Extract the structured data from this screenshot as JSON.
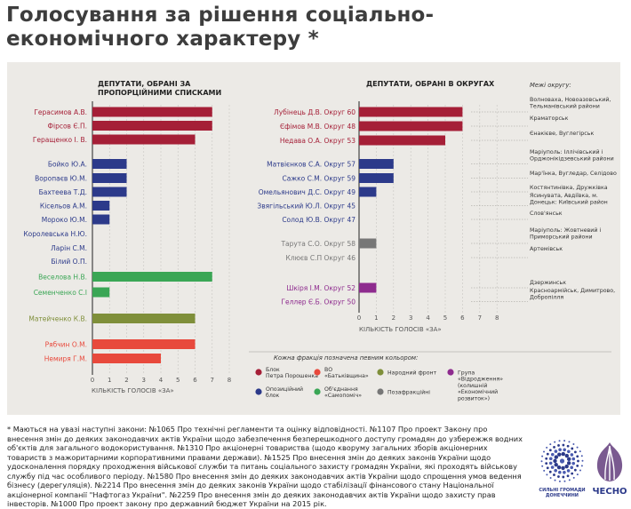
{
  "title": "Голосування за рішення соціально-економічного характеру *",
  "chart_data": [
    {
      "type": "bar",
      "orientation": "horizontal",
      "title": "ДЕПУТАТИ, ОБРАНІ ЗА ПРОПОРЦІЙНИМИ СПИСКАМИ",
      "xlabel": "КІЛЬКІСТЬ ГОЛОСІВ «ЗА»",
      "xlim": [
        0,
        8
      ],
      "xticks": [
        "0",
        "1",
        "2",
        "3",
        "4",
        "5",
        "6",
        "7",
        "8"
      ],
      "grid": true,
      "categories": [
        "Герасимов А.В.",
        "Фірсов Є.П.",
        "Геращенко І. В.",
        "Бойко Ю.А.",
        "Воропаєв Ю.М.",
        "Бахтеева Т.Д.",
        "Кісельов А.М.",
        "Мороко Ю.М.",
        "Королевська Н.Ю.",
        "Ларін С.М.",
        "Білий О.П.",
        "Веселова Н.В.",
        "Семенченко С.І",
        "Матейченко К.В.",
        "Рябчин О.М.",
        "Немиря Г.М."
      ],
      "values": [
        7,
        7,
        6,
        2,
        2,
        2,
        1,
        1,
        0,
        0,
        0,
        7,
        1,
        6,
        6,
        4
      ],
      "colors": [
        "#a51f37",
        "#a51f37",
        "#a51f37",
        "#2c3a8a",
        "#2c3a8a",
        "#2c3a8a",
        "#2c3a8a",
        "#2c3a8a",
        "#2c3a8a",
        "#2c3a8a",
        "#2c3a8a",
        "#3aa655",
        "#3aa655",
        "#7f8f3a",
        "#e8493c",
        "#e8493c"
      ]
    },
    {
      "type": "bar",
      "orientation": "horizontal",
      "title": "ДЕПУТАТИ, ОБРАНІ В ОКРУГАХ",
      "xlabel": "КІЛЬКІСТЬ ГОЛОСІВ «ЗА»",
      "xlim": [
        0,
        8
      ],
      "xticks": [
        "0",
        "1",
        "2",
        "3",
        "4",
        "5",
        "6",
        "7",
        "8"
      ],
      "grid": true,
      "categories": [
        "Лубінець Д.В. Округ 60",
        "Єфімов М.В. Округ 48",
        "Недава О.А. Округ 53",
        "Матвієнков С.А. Округ 57",
        "Сажко С.М. Округ 59",
        "Омельянович Д.С. Округ 49",
        "Звягільський Ю.Л. Округ 45",
        "Солод Ю.В. Округ 47",
        "Тарута С.О. Округ 58",
        "Клюєв С.П Округ 46",
        "Шкіря І.М. Округ 52",
        "Геллер Є.Б. Округ 50"
      ],
      "values": [
        6,
        6,
        5,
        2,
        2,
        1,
        0,
        0,
        1,
        0,
        1,
        0
      ],
      "colors": [
        "#a51f37",
        "#a51f37",
        "#a51f37",
        "#2c3a8a",
        "#2c3a8a",
        "#2c3a8a",
        "#2c3a8a",
        "#2c3a8a",
        "#777777",
        "#777777",
        "#8e2b8e",
        "#8e2b8e"
      ],
      "districts_header": "Межі округу:",
      "districts": [
        "Волноваха, Новоазовський, Тельманівський райони",
        "Краматорськ",
        "Єнакієве, Вуглегірськ",
        "Маріуполь: Іллічівський і Орджонікідзевський райони",
        "Мар'їнка, Вугледар, Селідово",
        "Костянтинівка, Дружківка",
        "Ясинувата, Авдіївка, м. Донецьк: Київський район",
        "Слов'янськ",
        "Маріуполь: Жовтневий і Приморський райони",
        "Артемівськ",
        "Дзержинськ",
        "Красноармійськ, Димитрово, Добропілля"
      ]
    }
  ],
  "legend": {
    "header": "Кожна фракція позначена певним кольором:",
    "items": [
      {
        "label": "Блок Петра Порошенка",
        "color": "#a51f37"
      },
      {
        "label": "ВО «Батьківщина»",
        "color": "#e8493c"
      },
      {
        "label": "Народний фронт",
        "color": "#7f8f3a"
      },
      {
        "label": "Група «Відродження» (колишній «Економічний розвиток»)",
        "color": "#8e2b8e"
      },
      {
        "label": "Опозиційний блок",
        "color": "#2c3a8a"
      },
      {
        "label": "Об'єднання «Самопоміч»",
        "color": "#3aa655"
      },
      {
        "label": "Позафракційні",
        "color": "#777777"
      }
    ]
  },
  "footnote": "* Маються на увазі наступні закони: №1065 Про технічні регламенти та оцінку відповідності. №1107 Про проект Закону про внесення змін до деяких законодавчих актів України щодо забезпечення безперешкодного доступу громадян до узбережжя водних об'єктів для загального водокористування. №1310 Про акціонерні товариства (щодо кворуму загальних зборів акціонерних товариств з мажоритарними корпоративними правами держави). №1525 Про внесення змін до деяких законів України щодо удосконалення порядку проходження військової служби та питань соціального захисту громадян України, які проходять військову службу під час особливого періоду. №1580 Про внесення змін до деяких законодавчих актів України щодо спрощення умов ведення бізнесу (дерегуляція). №2214 Про внесення змін до деяких законів України щодо стабілізації фінансового стану Національної акціонерної компанії \"Нафтогаз України\". №2259 Про внесення змін до деяких законодавчих актів України щодо захисту прав інвесторів. №1000 Про проект закону про державний бюджет України на 2015 рік.",
  "logos": {
    "logo1": "СИЛЬНІ ГРОМАДИ ДОНЕЧЧИНИ",
    "logo2": "ЧЕСНО"
  }
}
